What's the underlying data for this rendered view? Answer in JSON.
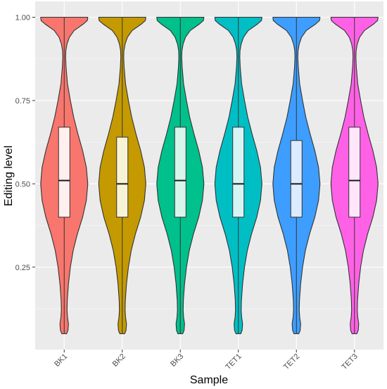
{
  "chart_data": {
    "type": "violin",
    "xlabel": "Sample",
    "ylabel": "Editing level",
    "ylim": [
      0.05,
      1.0
    ],
    "y_ticks": [
      0.25,
      0.5,
      0.75,
      1.0
    ],
    "y_tick_labels": [
      "0.25",
      "0.50",
      "0.75",
      "1.00"
    ],
    "categories": [
      "BK1",
      "BK2",
      "BK3",
      "TET1",
      "TET2",
      "TET3"
    ],
    "colors": [
      "#F8766D",
      "#C49A00",
      "#00C08B",
      "#00BFC4",
      "#3D9EFF",
      "#FF61E6"
    ],
    "box_fill_colors": [
      "#FFF0EF",
      "#F8F3D4",
      "#D7F5EA",
      "#D7F4F5",
      "#DCEBFF",
      "#FFE6FA"
    ],
    "grid": true,
    "legend": "none",
    "samples": [
      {
        "name": "BK1",
        "min": 0.05,
        "q1": 0.4,
        "median": 0.51,
        "q3": 0.67,
        "max": 1.0
      },
      {
        "name": "BK2",
        "min": 0.05,
        "q1": 0.4,
        "median": 0.5,
        "q3": 0.64,
        "max": 1.0
      },
      {
        "name": "BK3",
        "min": 0.05,
        "q1": 0.4,
        "median": 0.51,
        "q3": 0.67,
        "max": 1.0
      },
      {
        "name": "TET1",
        "min": 0.05,
        "q1": 0.4,
        "median": 0.5,
        "q3": 0.67,
        "max": 1.0
      },
      {
        "name": "TET2",
        "min": 0.05,
        "q1": 0.4,
        "median": 0.5,
        "q3": 0.63,
        "max": 1.0
      },
      {
        "name": "TET3",
        "min": 0.05,
        "q1": 0.4,
        "median": 0.51,
        "q3": 0.67,
        "max": 1.0
      }
    ],
    "density_profile": {
      "y": [
        0.05,
        0.06,
        0.08,
        0.1,
        0.12,
        0.15,
        0.2,
        0.25,
        0.3,
        0.35,
        0.4,
        0.45,
        0.5,
        0.55,
        0.6,
        0.65,
        0.7,
        0.75,
        0.8,
        0.85,
        0.88,
        0.9,
        0.92,
        0.94,
        0.96,
        0.98,
        0.99,
        1.0
      ],
      "relative_width": [
        0.1,
        0.16,
        0.18,
        0.14,
        0.12,
        0.13,
        0.18,
        0.26,
        0.38,
        0.56,
        0.78,
        0.94,
        1.0,
        0.94,
        0.78,
        0.58,
        0.4,
        0.26,
        0.14,
        0.08,
        0.06,
        0.07,
        0.12,
        0.22,
        0.42,
        0.82,
        0.98,
        1.0
      ]
    }
  }
}
